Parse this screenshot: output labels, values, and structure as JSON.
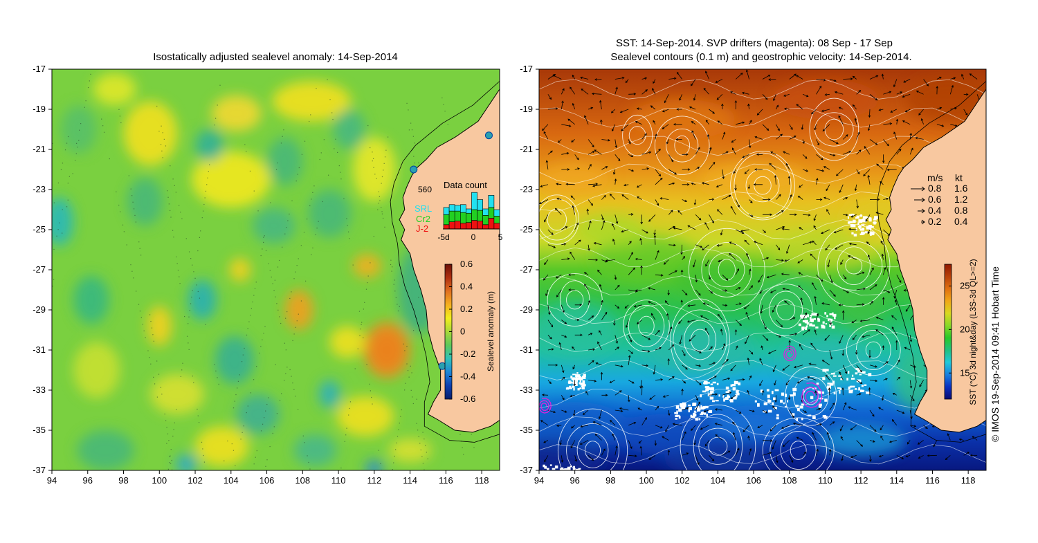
{
  "left_panel": {
    "title": "Isostatically adjusted sealevel anomaly: 14-Sep-2014",
    "colorbar": {
      "label": "Sealevel anomaly (m)",
      "ticks": [
        "0.6",
        "0.4",
        "0.2",
        "0",
        "-0.2",
        "-0.4",
        "-0.6"
      ],
      "tick_values": [
        0.6,
        0.4,
        0.2,
        0,
        -0.2,
        -0.4,
        -0.6
      ],
      "range": [
        -0.6,
        0.6
      ],
      "colors": [
        "#081d6b",
        "#0c3fb0",
        "#1d86d6",
        "#31c2b8",
        "#5ec85a",
        "#a8d83a",
        "#f2ee1e",
        "#f5b020",
        "#e07020",
        "#b03010",
        "#6b1008"
      ]
    },
    "data_count": {
      "title": "Data count",
      "max_label": "560",
      "legend": [
        {
          "label": "SRL",
          "color": "#22e0f0"
        },
        {
          "label": "Cr2",
          "color": "#22d022"
        },
        {
          "label": "J-2",
          "color": "#ee1111"
        }
      ],
      "x_ticks": [
        "-5d",
        "0",
        "5"
      ],
      "bars": [
        {
          "day": -5,
          "srl": 100,
          "cr2": 140,
          "j2": 60
        },
        {
          "day": -4,
          "srl": 90,
          "cr2": 150,
          "j2": 100
        },
        {
          "day": -3,
          "srl": 80,
          "cr2": 140,
          "j2": 110
        },
        {
          "day": -2,
          "srl": 110,
          "cr2": 150,
          "j2": 80
        },
        {
          "day": -1,
          "srl": 60,
          "cr2": 130,
          "j2": 90
        },
        {
          "day": 0,
          "srl": 240,
          "cr2": 150,
          "j2": 120
        },
        {
          "day": 1,
          "srl": 150,
          "cr2": 150,
          "j2": 110
        },
        {
          "day": 2,
          "srl": 90,
          "cr2": 130,
          "j2": 60
        },
        {
          "day": 3,
          "srl": 170,
          "cr2": 150,
          "j2": 150
        },
        {
          "day": 4,
          "srl": 90,
          "cr2": 100,
          "j2": 80
        }
      ]
    }
  },
  "right_panel": {
    "title_line1": "SST: 14-Sep-2014. SVP drifters (magenta): 08 Sep - 17 Sep",
    "title_line2": "Sealevel contours (0.1 m) and geostrophic velocity: 14-Sep-2014.",
    "colorbar": {
      "label": "SST (°C) 3d night&day (L3S-3d QL>=2)",
      "ticks": [
        "25",
        "20",
        "15"
      ],
      "tick_values": [
        25,
        20,
        15
      ],
      "range": [
        12,
        27.5
      ],
      "colors": [
        "#0a0a70",
        "#0a30c0",
        "#1880e0",
        "#20c8d8",
        "#20c080",
        "#28c828",
        "#88d828",
        "#d8d820",
        "#f0a818",
        "#e07010",
        "#b84008",
        "#901800"
      ]
    },
    "speed_legend": {
      "header_ms": "m/s",
      "header_kt": "kt",
      "rows": [
        {
          "ms": "0.8",
          "kt": "1.6",
          "len": 0.8
        },
        {
          "ms": "0.6",
          "kt": "1.2",
          "len": 0.6
        },
        {
          "ms": "0.4",
          "kt": "0.8",
          "len": 0.4
        },
        {
          "ms": "0.2",
          "kt": "0.4",
          "len": 0.2
        }
      ]
    }
  },
  "axes": {
    "lon_ticks": [
      "94",
      "96",
      "98",
      "100",
      "102",
      "104",
      "106",
      "108",
      "110",
      "112",
      "114",
      "116",
      "118"
    ],
    "lon_values": [
      94,
      96,
      98,
      100,
      102,
      104,
      106,
      108,
      110,
      112,
      114,
      116,
      118
    ],
    "lat_ticks": [
      "-17",
      "-19",
      "-21",
      "-23",
      "-25",
      "-27",
      "-29",
      "-31",
      "-33",
      "-35",
      "-37"
    ],
    "lat_values": [
      -17,
      -19,
      -21,
      -23,
      -25,
      -27,
      -29,
      -31,
      -33,
      -35,
      -37
    ],
    "lon_range": [
      94,
      119
    ],
    "lat_range": [
      -37,
      -17
    ]
  },
  "colors": {
    "land": "#f8c8a0",
    "coast": "#000000",
    "contour": "#ffffff",
    "drifter": "#dd22dd"
  },
  "credit": "© IMOS 19-Sep-2014 09:41 Hobart Time"
}
